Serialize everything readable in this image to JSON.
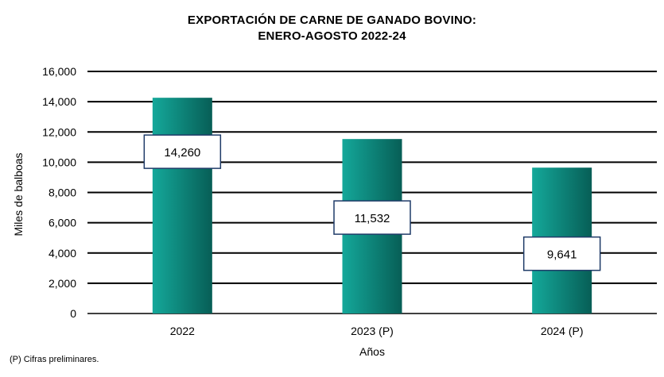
{
  "chart_data": {
    "type": "bar",
    "title": "EXPORTACIÓN DE CARNE DE GANADO BOVINO:",
    "subtitle": "ENERO-AGOSTO 2022-24",
    "categories": [
      "2022",
      "2023 (P)",
      "2024 (P)"
    ],
    "values": [
      14260,
      11532,
      9641
    ],
    "data_labels": [
      "14,260",
      "11,532",
      "9,641"
    ],
    "xlabel": "Años",
    "ylabel": "Miles de balboas",
    "ylim": [
      0,
      16000
    ],
    "yticks": [
      0,
      2000,
      4000,
      6000,
      8000,
      10000,
      12000,
      14000,
      16000
    ],
    "ytick_labels": [
      "0",
      "2,000",
      "4,000",
      "6,000",
      "8,000",
      "10,000",
      "12,000",
      "14,000",
      "16,000"
    ],
    "grid": true,
    "colors": {
      "bar_light": "#14a89a",
      "bar_dark": "#075e56",
      "grid": "#000000"
    }
  },
  "footnote": "(P) Cifras preliminares."
}
